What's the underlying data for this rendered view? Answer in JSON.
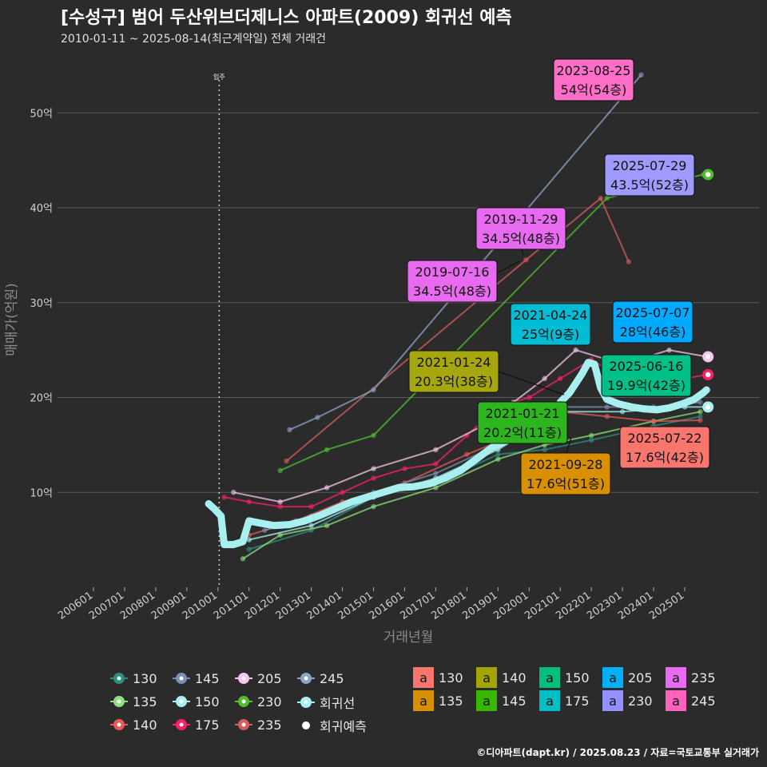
{
  "header": {
    "title": "[수성구] 범어 두산위브더제니스 아파트(2009) 회귀선 예측",
    "subtitle": "2010-01-11 ~ 2025-08-14(최근계약일) 전체 거래건"
  },
  "footer": "©디아파트(dapt.kr) / 2025.08.23 / 자료=국토교통부 실거래가",
  "chart_data": {
    "type": "line",
    "xlabel": "거래년월",
    "ylabel": "매매가(억원)",
    "x_ticks": [
      "200601",
      "200701",
      "200801",
      "200901",
      "201001",
      "201101",
      "201201",
      "201301",
      "201401",
      "201501",
      "201601",
      "201701",
      "201801",
      "201901",
      "202001",
      "202101",
      "202201",
      "202301",
      "202401",
      "202501"
    ],
    "y_ticks": [
      "10억",
      "20억",
      "30억",
      "40억",
      "50억"
    ],
    "y_tick_values": [
      10,
      20,
      30,
      40,
      50
    ],
    "xlim": [
      2005.5,
      2026.2
    ],
    "ylim": [
      0,
      56
    ],
    "grid": true,
    "vline": {
      "x": 2010.04,
      "label": "입주"
    },
    "regression_line": {
      "name": "회귀선",
      "color": "#a8f0f0",
      "points": [
        [
          2009.7,
          8.8
        ],
        [
          2009.9,
          8.2
        ],
        [
          2010.1,
          7.5
        ],
        [
          2010.2,
          4.5
        ],
        [
          2010.5,
          4.5
        ],
        [
          2010.8,
          4.8
        ],
        [
          2011.0,
          7.0
        ],
        [
          2011.3,
          6.8
        ],
        [
          2011.8,
          6.5
        ],
        [
          2012.3,
          6.6
        ],
        [
          2012.8,
          7.0
        ],
        [
          2013.3,
          7.6
        ],
        [
          2013.8,
          8.3
        ],
        [
          2014.3,
          9.0
        ],
        [
          2014.8,
          9.5
        ],
        [
          2015.3,
          10.0
        ],
        [
          2015.8,
          10.5
        ],
        [
          2016.3,
          10.6
        ],
        [
          2016.8,
          10.9
        ],
        [
          2017.3,
          11.5
        ],
        [
          2017.8,
          12.3
        ],
        [
          2018.3,
          13.5
        ],
        [
          2018.8,
          14.7
        ],
        [
          2019.3,
          15.5
        ],
        [
          2019.8,
          16.1
        ],
        [
          2020.3,
          16.8
        ],
        [
          2020.8,
          18.0
        ],
        [
          2021.0,
          19.5
        ],
        [
          2021.3,
          20.5
        ],
        [
          2021.7,
          22.5
        ],
        [
          2021.9,
          23.7
        ],
        [
          2022.1,
          23.5
        ],
        [
          2022.3,
          21.0
        ],
        [
          2022.5,
          19.8
        ],
        [
          2022.9,
          19.3
        ],
        [
          2023.3,
          19.0
        ],
        [
          2023.7,
          18.8
        ],
        [
          2024.1,
          18.7
        ],
        [
          2024.5,
          18.9
        ],
        [
          2024.9,
          19.3
        ],
        [
          2025.3,
          19.8
        ],
        [
          2025.6,
          20.5
        ],
        [
          2025.7,
          20.8
        ]
      ]
    },
    "series": [
      {
        "name": "130",
        "color": "#2f8f83",
        "values": [
          [
            2011.0,
            4.0
          ],
          [
            2013.0,
            6.0
          ],
          [
            2015.0,
            9.5
          ],
          [
            2017.0,
            11.0
          ],
          [
            2019.0,
            14.0
          ],
          [
            2020.5,
            14.5
          ],
          [
            2022.0,
            15.5
          ],
          [
            2024.0,
            17.0
          ],
          [
            2025.5,
            18.0
          ]
        ]
      },
      {
        "name": "135",
        "color": "#8ee07e",
        "values": [
          [
            2010.8,
            3.0
          ],
          [
            2012.0,
            5.5
          ],
          [
            2013.5,
            6.5
          ],
          [
            2015.0,
            8.5
          ],
          [
            2017.0,
            10.5
          ],
          [
            2019.0,
            13.5
          ],
          [
            2020.5,
            15.0
          ],
          [
            2022.0,
            16.0
          ],
          [
            2024.0,
            17.5
          ],
          [
            2025.5,
            18.5
          ]
        ]
      },
      {
        "name": "140",
        "color": "#e85a5a",
        "values": [
          [
            2011.0,
            5.5
          ],
          [
            2012.5,
            7.0
          ],
          [
            2014.0,
            9.0
          ],
          [
            2016.0,
            11.0
          ],
          [
            2018.0,
            14.0
          ],
          [
            2019.5,
            16.0
          ],
          [
            2021.0,
            18.5
          ],
          [
            2022.5,
            18.0
          ],
          [
            2024.0,
            17.5
          ],
          [
            2025.5,
            17.6
          ]
        ]
      },
      {
        "name": "145",
        "color": "#7a8fb5",
        "values": [
          [
            2011.5,
            6.0
          ],
          [
            2013.0,
            7.5
          ],
          [
            2015.0,
            10.0
          ],
          [
            2017.0,
            12.0
          ],
          [
            2019.0,
            15.0
          ],
          [
            2021.0,
            19.0
          ],
          [
            2022.5,
            19.0
          ],
          [
            2024.0,
            19.0
          ],
          [
            2025.5,
            19.5
          ]
        ]
      },
      {
        "name": "150",
        "color": "#a8f0f0",
        "values": [
          [
            2011.0,
            5.0
          ],
          [
            2013.0,
            6.5
          ],
          [
            2015.0,
            9.5
          ],
          [
            2017.0,
            11.5
          ],
          [
            2019.0,
            14.5
          ],
          [
            2021.0,
            18.5
          ],
          [
            2023.0,
            18.5
          ],
          [
            2025.0,
            19.0
          ],
          [
            2025.7,
            19.0
          ]
        ]
      },
      {
        "name": "175",
        "color": "#ff1f6a",
        "values": [
          [
            2010.2,
            9.5
          ],
          [
            2011.0,
            9.0
          ],
          [
            2012.0,
            8.5
          ],
          [
            2013.0,
            8.5
          ],
          [
            2014.0,
            10.0
          ],
          [
            2015.0,
            11.5
          ],
          [
            2016.0,
            12.5
          ],
          [
            2017.0,
            13.0
          ],
          [
            2018.0,
            16.0
          ],
          [
            2019.0,
            19.0
          ],
          [
            2020.0,
            20.0
          ],
          [
            2021.0,
            22.0
          ],
          [
            2022.0,
            24.0
          ],
          [
            2023.0,
            22.0
          ],
          [
            2024.0,
            22.5
          ],
          [
            2025.0,
            22.0
          ],
          [
            2025.7,
            22.4
          ]
        ]
      },
      {
        "name": "205",
        "color": "#f6c6ee",
        "values": [
          [
            2010.5,
            10.0
          ],
          [
            2012.0,
            9.0
          ],
          [
            2013.5,
            10.5
          ],
          [
            2015.0,
            12.5
          ],
          [
            2017.0,
            14.5
          ],
          [
            2018.5,
            17.0
          ],
          [
            2019.5,
            19.5
          ],
          [
            2020.5,
            22.0
          ],
          [
            2021.5,
            25.0
          ],
          [
            2022.5,
            24.0
          ],
          [
            2023.5,
            24.0
          ],
          [
            2024.5,
            25.0
          ],
          [
            2025.7,
            24.3
          ]
        ]
      },
      {
        "name": "230",
        "color": "#4fbf2f",
        "values": [
          [
            2012.0,
            12.3
          ],
          [
            2013.5,
            14.5
          ],
          [
            2015.0,
            16.0
          ],
          [
            2022.5,
            41.0
          ],
          [
            2025.6,
            43.5
          ]
        ]
      },
      {
        "name": "235",
        "color": "#d75c5c",
        "values": [
          [
            2012.2,
            13.3
          ],
          [
            2019.9,
            34.5
          ],
          [
            2022.3,
            41.0
          ],
          [
            2023.2,
            34.3
          ]
        ]
      },
      {
        "name": "245",
        "color": "#8fa3c8",
        "values": [
          [
            2012.3,
            16.6
          ],
          [
            2013.2,
            17.9
          ],
          [
            2015.0,
            20.8
          ],
          [
            2023.6,
            54.0
          ]
        ]
      }
    ],
    "predictions": [
      {
        "name": "205",
        "value": 24.3
      },
      {
        "name": "175",
        "value": 22.4
      },
      {
        "name": "150",
        "value": 19.0
      },
      {
        "name": "230",
        "value": 43.5
      }
    ],
    "annotations": [
      {
        "date": "2023-08-25",
        "price": "54억(54층)",
        "x": 2023.65,
        "y": 54.0,
        "color": "#ff6ec7"
      },
      {
        "date": "2025-07-29",
        "price": "43.5억(52층)",
        "x": 2025.58,
        "y": 43.5,
        "color": "#9f9bff"
      },
      {
        "date": "2019-11-29",
        "price": "34.5억(48층)",
        "x": 2019.9,
        "y": 34.5,
        "color": "#e86af0"
      },
      {
        "date": "2019-07-16",
        "price": "34.5억(48층)",
        "x": 2019.55,
        "y": 33.2,
        "color": "#e86af0"
      },
      {
        "date": "2021-04-24",
        "price": "25억(9층)",
        "x": 2021.3,
        "y": 25.0,
        "color": "#00bcd4"
      },
      {
        "date": "2025-07-07",
        "price": "28억(46층)",
        "x": 2025.5,
        "y": 28.0,
        "color": "#00aaff"
      },
      {
        "date": "2021-01-24",
        "price": "20.3억(38층)",
        "x": 2021.1,
        "y": 20.3,
        "color": "#a6a60f"
      },
      {
        "date": "2025-06-16",
        "price": "19.9억(42층)",
        "x": 2025.45,
        "y": 19.9,
        "color": "#00c087"
      },
      {
        "date": "2021-01-21",
        "price": "20.2억(11층)",
        "x": 2021.05,
        "y": 20.2,
        "color": "#2db51f"
      },
      {
        "date": "2025-07-22",
        "price": "17.6억(42층)",
        "x": 2025.55,
        "y": 17.6,
        "color": "#f8766d"
      },
      {
        "date": "2021-09-28",
        "price": "17.6억(51층)",
        "x": 2021.75,
        "y": 17.6,
        "color": "#d89000"
      }
    ],
    "legend_circles": [
      {
        "label": "130",
        "color": "#2f8f83"
      },
      {
        "label": "135",
        "color": "#8ee07e"
      },
      {
        "label": "140",
        "color": "#e85a5a"
      },
      {
        "label": "145",
        "color": "#7a8fb5"
      },
      {
        "label": "150",
        "color": "#a8f0f0"
      },
      {
        "label": "175",
        "color": "#ff1f6a"
      },
      {
        "label": "205",
        "color": "#f6c6ee"
      },
      {
        "label": "230",
        "color": "#4fbf2f"
      },
      {
        "label": "235",
        "color": "#d75c5c"
      },
      {
        "label": "245",
        "color": "#8fa3c8"
      },
      {
        "label": "회귀선",
        "color": "#a8f0f0"
      },
      {
        "label": "회귀예측",
        "color": "#ffffff"
      }
    ],
    "legend_boxes": [
      {
        "label": "130",
        "color": "#f8766d"
      },
      {
        "label": "135",
        "color": "#d89000"
      },
      {
        "label": "140",
        "color": "#a3a500"
      },
      {
        "label": "145",
        "color": "#39b600"
      },
      {
        "label": "150",
        "color": "#00bf7d"
      },
      {
        "label": "175",
        "color": "#00bfc4"
      },
      {
        "label": "205",
        "color": "#00b0f6"
      },
      {
        "label": "230",
        "color": "#9590ff"
      },
      {
        "label": "235",
        "color": "#e76bf3"
      },
      {
        "label": "245",
        "color": "#ff62bc"
      }
    ],
    "legend_box_glyph": "a"
  }
}
